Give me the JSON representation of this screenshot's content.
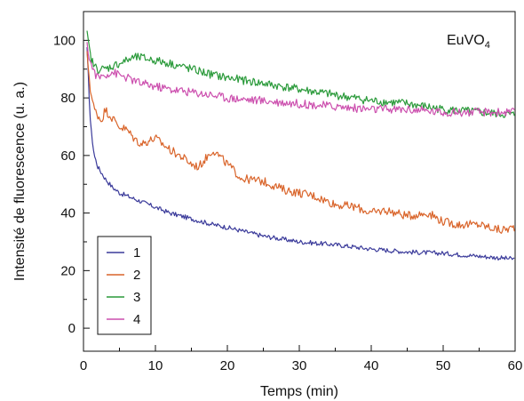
{
  "chart_data": {
    "type": "line",
    "title": "",
    "annotation": {
      "base": "EuVO",
      "sub": "4"
    },
    "xlabel": "Temps (min)",
    "ylabel": "Intensité de fluorescence (u. a.)",
    "xlim": [
      0,
      60
    ],
    "ylim": [
      -8,
      110
    ],
    "xticks": [
      "0",
      "10",
      "20",
      "30",
      "40",
      "50",
      "60"
    ],
    "yticks": [
      "0",
      "20",
      "40",
      "60",
      "80",
      "100"
    ],
    "grid": false,
    "legend_position": "bottom-left",
    "series": [
      {
        "name": "1",
        "color": "#3a3a9a",
        "x": [
          0.5,
          0.8,
          1,
          1.5,
          2,
          3,
          4,
          5,
          6,
          8,
          10,
          12,
          15,
          18,
          20,
          25,
          30,
          35,
          40,
          45,
          50,
          55,
          60
        ],
        "y": [
          97,
          80,
          70,
          60,
          56,
          52,
          49,
          47,
          46,
          44,
          42,
          40,
          38,
          36,
          35,
          32,
          30,
          29,
          27.5,
          26.5,
          26,
          25,
          24
        ]
      },
      {
        "name": "2",
        "color": "#d9642a",
        "x": [
          0.5,
          1,
          1.5,
          2,
          2.5,
          3,
          4,
          5,
          6,
          7,
          8,
          10,
          12,
          14,
          15,
          16,
          18,
          20,
          22,
          25,
          28,
          30,
          32,
          35,
          38,
          40,
          42,
          45,
          48,
          50,
          52,
          55,
          58,
          60
        ],
        "y": [
          95,
          82,
          76,
          74,
          72,
          76,
          73,
          70,
          69,
          66,
          64,
          66,
          62,
          59,
          57,
          56,
          62,
          57,
          52,
          51,
          48,
          47,
          46,
          43,
          42,
          40,
          41,
          39,
          40,
          37,
          36,
          36,
          34,
          35
        ]
      },
      {
        "name": "3",
        "color": "#2a9a3a",
        "x": [
          0.5,
          1,
          1.5,
          2,
          3,
          4,
          5,
          6,
          7,
          8,
          10,
          12,
          15,
          18,
          20,
          25,
          30,
          35,
          40,
          45,
          50,
          55,
          60
        ],
        "y": [
          102,
          94,
          91,
          90,
          90,
          91,
          92,
          93,
          94,
          94,
          93,
          92,
          90,
          88,
          87,
          85,
          83,
          81,
          79,
          78,
          76,
          75,
          74
        ]
      },
      {
        "name": "4",
        "color": "#cc4fae",
        "x": [
          0.5,
          1,
          1.5,
          2,
          3,
          4,
          5,
          6,
          7,
          8,
          10,
          12,
          15,
          18,
          20,
          25,
          30,
          35,
          40,
          45,
          50,
          55,
          60
        ],
        "y": [
          98,
          92,
          89,
          87,
          88,
          89,
          88,
          87,
          86,
          85,
          84,
          83,
          82,
          81,
          80,
          79,
          78,
          77,
          76,
          76,
          75,
          75,
          75
        ]
      }
    ]
  }
}
